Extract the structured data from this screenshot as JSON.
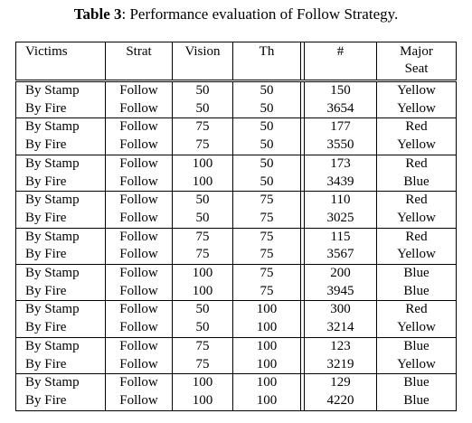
{
  "caption": {
    "label": "Table 3",
    "text": ": Performance evaluation of Follow Strategy."
  },
  "headers": {
    "victims": "Victims",
    "strat": "Strat",
    "vision": "Vision",
    "th": "Th",
    "count": "#",
    "major_line1": "Major",
    "major_line2": "Seat"
  },
  "rows": [
    {
      "victims": "By Stamp",
      "strat": "Follow",
      "vision": "50",
      "th": "50",
      "count": "150",
      "major": "Yellow"
    },
    {
      "victims": "By Fire",
      "strat": "Follow",
      "vision": "50",
      "th": "50",
      "count": "3654",
      "major": "Yellow"
    },
    {
      "victims": "By Stamp",
      "strat": "Follow",
      "vision": "75",
      "th": "50",
      "count": "177",
      "major": "Red"
    },
    {
      "victims": "By Fire",
      "strat": "Follow",
      "vision": "75",
      "th": "50",
      "count": "3550",
      "major": "Yellow"
    },
    {
      "victims": "By Stamp",
      "strat": "Follow",
      "vision": "100",
      "th": "50",
      "count": "173",
      "major": "Red"
    },
    {
      "victims": "By Fire",
      "strat": "Follow",
      "vision": "100",
      "th": "50",
      "count": "3439",
      "major": "Blue"
    },
    {
      "victims": "By Stamp",
      "strat": "Follow",
      "vision": "50",
      "th": "75",
      "count": "110",
      "major": "Red"
    },
    {
      "victims": "By Fire",
      "strat": "Follow",
      "vision": "50",
      "th": "75",
      "count": "3025",
      "major": "Yellow"
    },
    {
      "victims": "By Stamp",
      "strat": "Follow",
      "vision": "75",
      "th": "75",
      "count": "115",
      "major": "Red"
    },
    {
      "victims": "By Fire",
      "strat": "Follow",
      "vision": "75",
      "th": "75",
      "count": "3567",
      "major": "Yellow"
    },
    {
      "victims": "By Stamp",
      "strat": "Follow",
      "vision": "100",
      "th": "75",
      "count": "200",
      "major": "Blue"
    },
    {
      "victims": "By Fire",
      "strat": "Follow",
      "vision": "100",
      "th": "75",
      "count": "3945",
      "major": "Blue"
    },
    {
      "victims": "By Stamp",
      "strat": "Follow",
      "vision": "50",
      "th": "100",
      "count": "300",
      "major": "Red"
    },
    {
      "victims": "By Fire",
      "strat": "Follow",
      "vision": "50",
      "th": "100",
      "count": "3214",
      "major": "Yellow"
    },
    {
      "victims": "By Stamp",
      "strat": "Follow",
      "vision": "75",
      "th": "100",
      "count": "123",
      "major": "Blue"
    },
    {
      "victims": "By Fire",
      "strat": "Follow",
      "vision": "75",
      "th": "100",
      "count": "3219",
      "major": "Yellow"
    },
    {
      "victims": "By Stamp",
      "strat": "Follow",
      "vision": "100",
      "th": "100",
      "count": "129",
      "major": "Blue"
    },
    {
      "victims": "By Fire",
      "strat": "Follow",
      "vision": "100",
      "th": "100",
      "count": "4220",
      "major": "Blue"
    }
  ]
}
